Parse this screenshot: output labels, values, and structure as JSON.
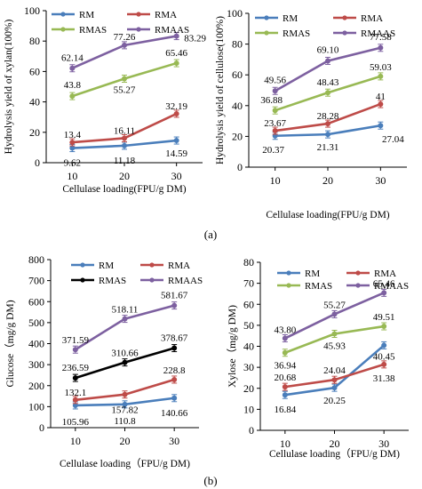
{
  "panel_labels": {
    "a": "(a)",
    "b": "(b)"
  },
  "chart_data": [
    {
      "type": "line",
      "xlabel": "Cellulase loading(FPU/g DM)",
      "ylabel": "Hydrolysis yield of xylan(100%)",
      "x": [
        10,
        20,
        30
      ],
      "xlim": [
        5,
        35
      ],
      "ylim": [
        0,
        100
      ],
      "yticks": [
        0,
        20,
        40,
        60,
        80,
        100
      ],
      "grid": false,
      "legend": "top",
      "series": [
        {
          "name": "RM",
          "color": "#4a7ebb",
          "values": [
            9.62,
            11.18,
            14.59
          ],
          "labels": [
            "9.62",
            "11.18",
            "14.59"
          ]
        },
        {
          "name": "RMA",
          "color": "#be4b48",
          "values": [
            13.4,
            16.11,
            32.19
          ],
          "labels": [
            "13.4",
            "16.11",
            "32.19"
          ]
        },
        {
          "name": "RMAS",
          "color": "#98b954",
          "values": [
            43.8,
            55.27,
            65.46
          ],
          "labels": [
            "43.8",
            "55.27",
            "65.46"
          ]
        },
        {
          "name": "RMAAS",
          "color": "#7d60a0",
          "values": [
            62.14,
            77.26,
            83.29
          ],
          "labels": [
            "62.14",
            "77.26",
            "83.29"
          ]
        }
      ]
    },
    {
      "type": "line",
      "xlabel": "Cellulase loading(FPU/g DM)",
      "ylabel": "Hydrolysis yield of cellulose(100%)",
      "x": [
        10,
        20,
        30
      ],
      "xlim": [
        5,
        35
      ],
      "ylim": [
        0,
        100
      ],
      "yticks": [
        0,
        20,
        40,
        60,
        80,
        100
      ],
      "grid": false,
      "legend": "top",
      "series": [
        {
          "name": "RM",
          "color": "#4a7ebb",
          "values": [
            20.37,
            21.31,
            27.04
          ],
          "labels": [
            "20.37",
            "21.31",
            "27.04"
          ]
        },
        {
          "name": "RMA",
          "color": "#be4b48",
          "values": [
            23.67,
            28.28,
            41
          ],
          "labels": [
            "23.67",
            "28.28",
            "41"
          ]
        },
        {
          "name": "RMAS",
          "color": "#98b954",
          "values": [
            36.88,
            48.43,
            59.03
          ],
          "labels": [
            "36.88",
            "48.43",
            "59.03"
          ]
        },
        {
          "name": "RMAAS",
          "color": "#7d60a0",
          "values": [
            49.56,
            69.1,
            77.58
          ],
          "labels": [
            "49.56",
            "69.10",
            "77.58"
          ]
        }
      ]
    },
    {
      "type": "line",
      "xlabel": "Cellulase loading（FPU/g DM)",
      "ylabel": "Glucose（mg/g DM)",
      "x": [
        10,
        20,
        30
      ],
      "xlim": [
        5,
        35
      ],
      "ylim": [
        0,
        800
      ],
      "yticks": [
        0,
        100,
        200,
        300,
        400,
        500,
        600,
        700,
        800
      ],
      "grid": false,
      "legend": "top",
      "series": [
        {
          "name": "RM",
          "color": "#4a7ebb",
          "values": [
            105.96,
            110.8,
            140.66
          ],
          "labels": [
            "105.96",
            "110.8",
            "140.66"
          ]
        },
        {
          "name": "RMA",
          "color": "#be4b48",
          "values": [
            132.1,
            157.82,
            228.8
          ],
          "labels": [
            "132.1",
            "157.82",
            "228.8"
          ]
        },
        {
          "name": "RMAS",
          "color": "#000000",
          "values": [
            236.59,
            310.66,
            378.67
          ],
          "labels": [
            "236.59",
            "310.66",
            "378.67"
          ]
        },
        {
          "name": "RMAAS",
          "color": "#7d60a0",
          "values": [
            371.59,
            518.11,
            581.67
          ],
          "labels": [
            "371.59",
            "518.11",
            "581.67"
          ]
        }
      ]
    },
    {
      "type": "line",
      "xlabel": "Cellulase loading（FPU/g DM)",
      "ylabel": "Xylose（mg/g DM)",
      "x": [
        10,
        20,
        30
      ],
      "xlim": [
        5,
        35
      ],
      "ylim": [
        0,
        80
      ],
      "yticks": [
        0,
        10,
        20,
        30,
        40,
        50,
        60,
        70,
        80
      ],
      "grid": false,
      "legend": "top",
      "series": [
        {
          "name": "RM",
          "color": "#4a7ebb",
          "values": [
            16.84,
            20.25,
            40.45
          ],
          "labels": [
            "16.84",
            "20.25",
            "40.45"
          ]
        },
        {
          "name": "RMA",
          "color": "#be4b48",
          "values": [
            20.68,
            24.04,
            31.38
          ],
          "labels": [
            "20.68",
            "24.04",
            "31.38"
          ]
        },
        {
          "name": "RMAS",
          "color": "#98b954",
          "values": [
            36.94,
            45.93,
            49.51
          ],
          "labels": [
            "36.94",
            "45.93",
            "49.51"
          ]
        },
        {
          "name": "RMAAS",
          "color": "#7d60a0",
          "values": [
            43.8,
            55.27,
            65.46
          ],
          "labels": [
            "43.80",
            "55.27",
            "65.46"
          ]
        }
      ]
    }
  ]
}
